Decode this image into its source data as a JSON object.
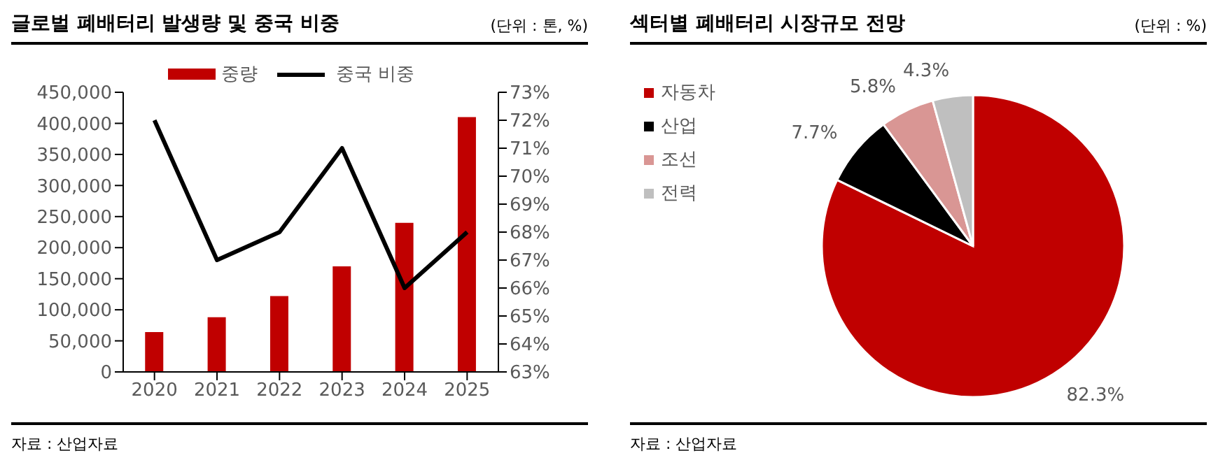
{
  "chart_data": [
    {
      "type": "bar",
      "title": "글로벌 폐배터리 발생량 및 중국 비중",
      "subtitle": "(단위 : 톤, %)",
      "annotations": [
        "자료 : 산업자료"
      ],
      "categories": [
        "2020",
        "2021",
        "2022",
        "2023",
        "2024",
        "2025"
      ],
      "series": [
        {
          "name": "중량",
          "type": "bar",
          "color": "#c00000",
          "values": [
            64000,
            88000,
            122000,
            170000,
            240000,
            410000
          ]
        },
        {
          "name": "중국 비중",
          "type": "line",
          "axis": "y2",
          "color": "#000000",
          "values": [
            72,
            67,
            68,
            71,
            66,
            68
          ]
        }
      ],
      "ylim": [
        0,
        450000
      ],
      "yticks": [
        0,
        {
          "value": 50000,
          "label": "50,000"
        },
        {
          "value": 100000,
          "label": "100,000"
        },
        {
          "value": 150000,
          "label": "150,000"
        },
        {
          "value": 200000,
          "label": "200,000"
        },
        {
          "value": 250000,
          "label": "250,000"
        },
        {
          "value": 300000,
          "label": "300,000"
        },
        {
          "value": 350000,
          "label": "350,000"
        },
        {
          "value": 400000,
          "label": "400,000"
        },
        {
          "value": 450000,
          "label": "450,000"
        }
      ],
      "y2lim": [
        63,
        73
      ],
      "y2ticks": [
        {
          "value": 63,
          "label": "63%"
        },
        {
          "value": 64,
          "label": "64%"
        },
        {
          "value": 65,
          "label": "65%"
        },
        {
          "value": 66,
          "label": "66%"
        },
        {
          "value": 67,
          "label": "67%"
        },
        {
          "value": 68,
          "label": "68%"
        },
        {
          "value": 69,
          "label": "69%"
        },
        {
          "value": 70,
          "label": "70%"
        },
        {
          "value": 71,
          "label": "71%"
        },
        {
          "value": 72,
          "label": "72%"
        },
        {
          "value": 73,
          "label": "73%"
        }
      ],
      "legend": "top",
      "grid": false,
      "marker": "none"
    },
    {
      "type": "pie",
      "title": "섹터별 폐배터리 시장규모 전망",
      "subtitle": "(단위 : %)",
      "annotations": [
        "자료 : 산업자료"
      ],
      "categories": [
        "자동차",
        "산업",
        "조선",
        "전력"
      ],
      "values": [
        82.3,
        7.7,
        5.8,
        4.3
      ],
      "colors": [
        "#c00000",
        "#000000",
        "#d99694",
        "#bfbfbf"
      ],
      "value_labels": [
        "82.3%",
        "7.7%",
        "5.8%",
        "4.3%"
      ],
      "legend": "top left"
    }
  ]
}
